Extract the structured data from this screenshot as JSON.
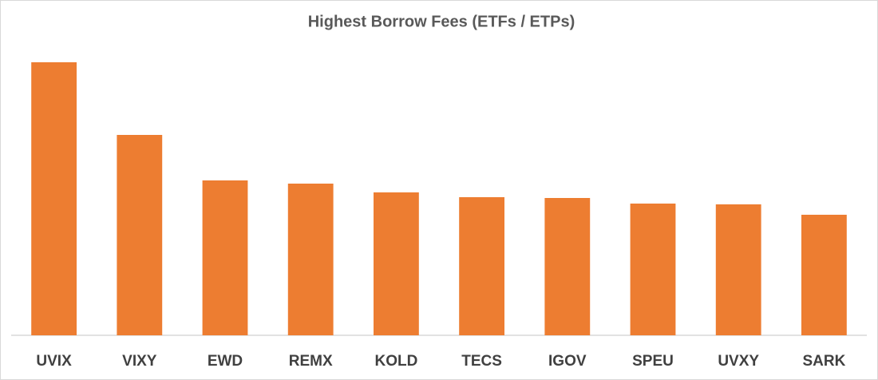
{
  "chart_data": {
    "type": "bar",
    "title": "Highest Borrow Fees (ETFs / ETPs)",
    "categories": [
      "UVIX",
      "VIXY",
      "EWD",
      "REMX",
      "KOLD",
      "TECS",
      "IGOV",
      "SPEU",
      "UVXY",
      "SARK"
    ],
    "values": [
      342,
      251,
      194,
      190,
      179,
      173,
      172,
      165,
      164,
      151
    ],
    "color": "#ed7d31",
    "ylim": [
      0,
      360
    ]
  }
}
